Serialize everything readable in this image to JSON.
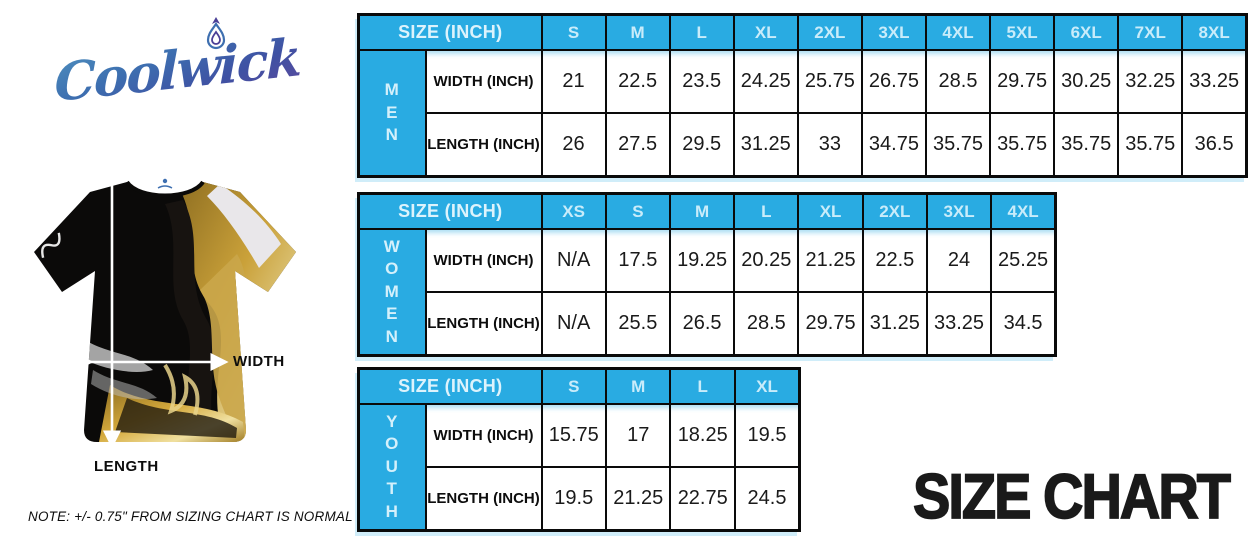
{
  "logo": {
    "text": "Coolwick",
    "flame_icon": "flame-drop-icon"
  },
  "diagram": {
    "width_label": "WIDTH",
    "length_label": "LENGTH"
  },
  "note": "NOTE: +/- 0.75\" FROM SIZING CHART IS NORMAL",
  "title": "SIZE CHART",
  "colors": {
    "header_blue": "#29ABE2",
    "header_text": "#D9F2FC",
    "border_black": "#0A0A0A",
    "shirt_gold": "#C9A14A",
    "logo_gradient_start": "#4E8FBE",
    "logo_gradient_end": "#5A4B9E"
  },
  "chart_data": [
    {
      "type": "table",
      "group": "MEN",
      "corner_label": "SIZE (INCH)",
      "sizes": [
        "S",
        "M",
        "L",
        "XL",
        "2XL",
        "3XL",
        "4XL",
        "5XL",
        "6XL",
        "7XL",
        "8XL"
      ],
      "rows": [
        {
          "label": "WIDTH (INCH)",
          "values": [
            "21",
            "22.5",
            "23.5",
            "24.25",
            "25.75",
            "26.75",
            "28.5",
            "29.75",
            "30.25",
            "32.25",
            "33.25"
          ]
        },
        {
          "label": "LENGTH (INCH)",
          "values": [
            "26",
            "27.5",
            "29.5",
            "31.25",
            "33",
            "34.75",
            "35.75",
            "35.75",
            "35.75",
            "35.75",
            "36.5"
          ]
        }
      ]
    },
    {
      "type": "table",
      "group": "WOMEN",
      "corner_label": "SIZE (INCH)",
      "sizes": [
        "XS",
        "S",
        "M",
        "L",
        "XL",
        "2XL",
        "3XL",
        "4XL"
      ],
      "rows": [
        {
          "label": "WIDTH (INCH)",
          "values": [
            "N/A",
            "17.5",
            "19.25",
            "20.25",
            "21.25",
            "22.5",
            "24",
            "25.25"
          ]
        },
        {
          "label": "LENGTH (INCH)",
          "values": [
            "N/A",
            "25.5",
            "26.5",
            "28.5",
            "29.75",
            "31.25",
            "33.25",
            "34.5"
          ]
        }
      ]
    },
    {
      "type": "table",
      "group": "YOUTH",
      "corner_label": "SIZE (INCH)",
      "sizes": [
        "S",
        "M",
        "L",
        "XL"
      ],
      "rows": [
        {
          "label": "WIDTH (INCH)",
          "values": [
            "15.75",
            "17",
            "18.25",
            "19.5"
          ]
        },
        {
          "label": "LENGTH (INCH)",
          "values": [
            "19.5",
            "21.25",
            "22.75",
            "24.5"
          ]
        }
      ]
    }
  ]
}
